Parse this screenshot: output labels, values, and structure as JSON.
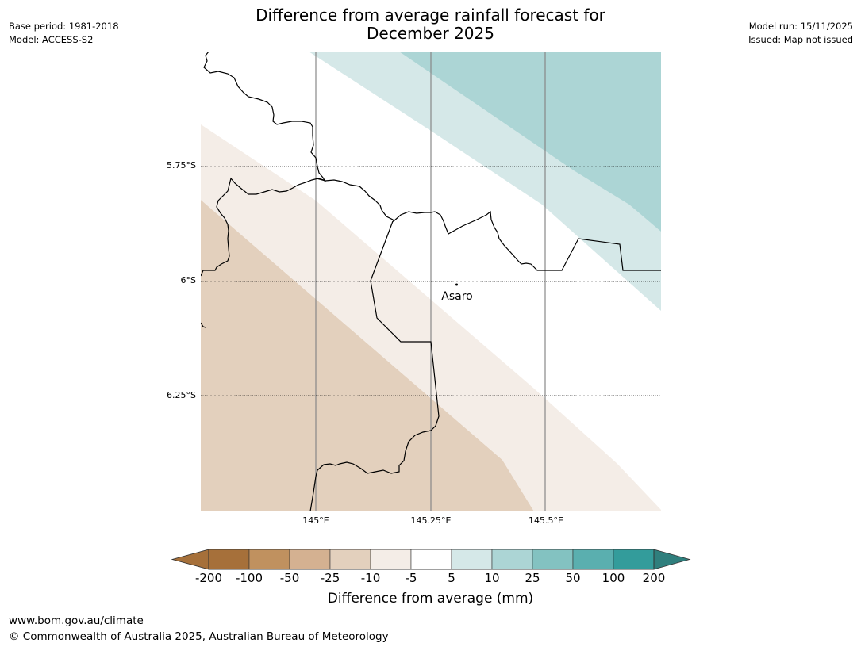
{
  "title": {
    "line1": "Difference from average rainfall forecast for",
    "line2": "December 2025"
  },
  "meta_left": {
    "base_period": "Base period: 1981-2018",
    "model": "Model: ACCESS-S2"
  },
  "meta_right": {
    "model_run": "Model run: 15/11/2025",
    "issued": "Issued: Map not issued"
  },
  "map": {
    "latitude_labels": [
      "5.75°S",
      "6°S",
      "6.25°S"
    ],
    "longitude_labels": [
      "145°E",
      "145.25°E",
      "145.5°E"
    ],
    "place_label": "Asaro"
  },
  "colorbar": {
    "title": "Difference from average (mm)",
    "tick_labels": [
      "-200",
      "-100",
      "-50",
      "-25",
      "-10",
      "-5",
      "5",
      "10",
      "25",
      "50",
      "100",
      "200"
    ],
    "colors": [
      "#a6703a",
      "#c0915f",
      "#d4b191",
      "#e3d0bd",
      "#f4ede7",
      "#ffffff",
      "#d5e8e8",
      "#acd5d5",
      "#83c2c1",
      "#5aafaf",
      "#339c9b"
    ],
    "extend_low_color": "#a6703a",
    "extend_high_color": "#2f7f7d"
  },
  "footer": {
    "url": "www.bom.gov.au/climate",
    "copyright": "© Commonwealth of Australia 2025, Australian Bureau of Meteorology"
  }
}
